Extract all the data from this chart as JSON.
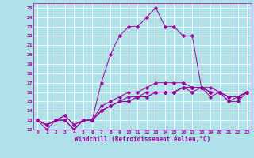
{
  "xlabel": "Windchill (Refroidissement éolien,°C)",
  "xlim": [
    -0.5,
    23.5
  ],
  "ylim": [
    12,
    25.5
  ],
  "xticks": [
    0,
    1,
    2,
    3,
    4,
    5,
    6,
    7,
    8,
    9,
    10,
    11,
    12,
    13,
    14,
    15,
    16,
    17,
    18,
    19,
    20,
    21,
    22,
    23
  ],
  "yticks": [
    12,
    13,
    14,
    15,
    16,
    17,
    18,
    19,
    20,
    21,
    22,
    23,
    24,
    25
  ],
  "line_color": "#990099",
  "bg_color": "#b0e0e8",
  "grid_color": "#ffffff",
  "lines": [
    [
      13.0,
      12.0,
      13.0,
      13.0,
      12.0,
      13.0,
      13.0,
      17.0,
      20.0,
      22.0,
      23.0,
      23.0,
      24.0,
      25.0,
      23.0,
      23.0,
      22.0,
      22.0,
      16.5,
      16.5,
      16.0,
      15.0,
      15.5,
      16.0
    ],
    [
      13.0,
      12.5,
      13.0,
      13.0,
      12.0,
      13.0,
      13.0,
      14.0,
      14.5,
      15.0,
      15.0,
      15.5,
      15.5,
      16.0,
      16.0,
      16.0,
      16.5,
      16.5,
      16.5,
      16.0,
      16.0,
      15.5,
      15.5,
      16.0
    ],
    [
      13.0,
      12.5,
      13.0,
      13.0,
      12.0,
      13.0,
      13.0,
      14.0,
      14.5,
      15.0,
      15.0,
      15.5,
      15.5,
      16.0,
      16.0,
      16.0,
      16.5,
      16.0,
      16.5,
      15.5,
      16.0,
      15.0,
      15.0,
      16.0
    ],
    [
      13.0,
      12.5,
      13.0,
      13.5,
      12.5,
      13.0,
      13.0,
      14.0,
      14.5,
      15.0,
      15.5,
      15.5,
      16.0,
      16.0,
      16.0,
      16.0,
      16.5,
      16.5,
      16.5,
      16.0,
      16.0,
      15.5,
      15.5,
      16.0
    ],
    [
      13.0,
      12.5,
      13.0,
      13.5,
      12.5,
      13.0,
      13.0,
      14.5,
      15.0,
      15.5,
      16.0,
      16.0,
      16.5,
      17.0,
      17.0,
      17.0,
      17.0,
      16.5,
      16.5,
      16.0,
      16.0,
      15.5,
      15.5,
      16.0
    ]
  ]
}
